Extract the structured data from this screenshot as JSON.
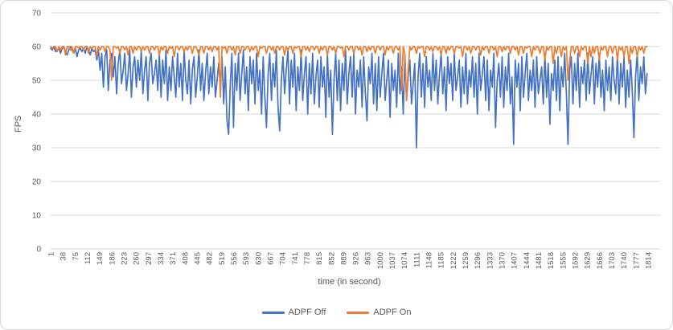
{
  "colors": {
    "series_off": "#4472C4",
    "series_on": "#ED7D31",
    "gridline": "#D9D9D9",
    "axis_line": "#D9D9D9",
    "axis_text": "#595959",
    "frame_border": "#D9D9D9"
  },
  "axes": {
    "y_title": "FPS",
    "x_title": "time (in second)"
  },
  "legend": {
    "items": [
      {
        "label": "ADPF Off",
        "color": "#4472C4"
      },
      {
        "label": "ADPF On",
        "color": "#ED7D31"
      }
    ]
  },
  "chart_data": {
    "type": "line",
    "title": "",
    "xlabel": "time (in second)",
    "ylabel": "FPS",
    "ylim": [
      0,
      70
    ],
    "xlim": [
      1,
      1814
    ],
    "grid": "horizontal",
    "legend_position": "bottom",
    "y_ticks": [
      0,
      10,
      20,
      30,
      40,
      50,
      60,
      70
    ],
    "x_ticks": [
      1,
      38,
      75,
      112,
      149,
      186,
      223,
      260,
      297,
      334,
      371,
      408,
      445,
      482,
      519,
      556,
      593,
      630,
      667,
      704,
      741,
      778,
      815,
      852,
      889,
      926,
      963,
      1000,
      1037,
      1074,
      1111,
      1148,
      1185,
      1222,
      1259,
      1296,
      1333,
      1370,
      1407,
      1444,
      1481,
      1518,
      1555,
      1592,
      1629,
      1666,
      1703,
      1740,
      1777,
      1814
    ],
    "x_start": 1,
    "x_step": 5,
    "series": [
      {
        "name": "ADPF Off",
        "color": "#4472C4",
        "values": [
          59.5,
          59,
          60,
          58.5,
          59,
          59.5,
          58,
          59.5,
          60,
          58.5,
          57.5,
          59,
          60,
          59,
          58,
          59.5,
          57,
          59,
          59.5,
          58.5,
          59.5,
          58,
          60,
          59,
          57.5,
          59.5,
          58.5,
          59,
          56,
          59,
          53,
          58,
          48,
          57,
          59,
          47,
          56,
          58,
          51,
          57,
          46,
          55,
          59,
          49,
          53,
          58,
          47,
          52,
          59,
          45,
          54,
          57,
          48,
          56,
          50,
          59,
          46,
          53,
          57,
          44,
          55,
          58,
          49,
          52,
          56,
          47,
          58,
          45,
          56,
          49,
          59,
          44,
          54,
          47,
          57,
          51,
          45,
          58,
          48,
          55,
          44,
          59,
          50,
          46,
          56,
          43,
          53,
          57,
          45,
          51,
          59,
          47,
          55,
          44,
          52,
          58,
          46,
          54,
          48,
          57,
          45,
          50,
          55,
          48,
          57,
          43,
          54,
          38,
          34,
          49,
          58,
          36,
          55,
          47,
          58,
          44,
          52,
          59,
          46,
          54,
          41,
          57,
          49,
          56,
          43,
          58,
          47,
          53,
          40,
          57,
          45,
          36,
          52,
          58,
          44,
          55,
          48,
          59,
          42,
          35,
          50,
          57,
          46,
          53,
          59,
          43,
          56,
          48,
          58,
          41,
          54,
          47,
          59,
          44,
          52,
          57,
          40,
          55,
          46,
          58,
          43,
          51,
          56,
          42,
          57,
          48,
          54,
          39,
          58,
          45,
          53,
          34,
          50,
          58,
          44,
          56,
          41,
          55,
          47,
          59,
          43,
          52,
          57,
          45,
          58,
          40,
          53,
          48,
          56,
          42,
          57,
          46,
          38,
          54,
          49,
          58,
          43,
          55,
          41,
          57,
          45,
          52,
          58,
          44,
          50,
          56,
          39,
          55,
          47,
          53,
          42,
          58,
          46,
          54,
          40,
          57,
          44,
          51,
          56,
          43,
          49,
          55,
          30,
          51,
          58,
          45,
          55,
          42,
          57,
          48,
          53,
          44,
          58,
          47,
          56,
          43,
          52,
          58,
          46,
          54,
          41,
          57,
          49,
          55,
          44,
          58,
          47,
          51,
          56,
          42,
          54,
          46,
          58,
          43,
          53,
          48,
          57,
          45,
          55,
          40,
          58,
          47,
          52,
          57,
          44,
          56,
          41,
          53,
          48,
          58,
          36,
          50,
          55,
          45,
          57,
          42,
          54,
          47,
          58,
          43,
          51,
          31,
          56,
          48,
          55,
          41,
          57,
          45,
          52,
          58,
          44,
          53,
          47,
          56,
          42,
          57,
          46,
          50,
          54,
          43,
          58,
          45,
          55,
          37,
          52,
          47,
          56,
          44,
          57,
          41,
          54,
          48,
          58,
          46,
          31,
          53,
          57,
          43,
          55,
          47,
          58,
          42,
          54,
          49,
          56,
          44,
          58,
          46,
          52,
          57,
          43,
          55,
          48,
          58,
          45,
          53,
          41,
          56,
          47,
          54,
          44,
          57,
          50,
          46,
          58,
          43,
          55,
          48,
          57,
          42,
          53,
          45,
          56,
          47,
          33,
          51,
          58,
          44,
          54,
          49,
          57,
          46,
          52
        ]
      },
      {
        "name": "ADPF On",
        "color": "#ED7D31",
        "values": [
          60,
          59.5,
          60,
          60,
          58.5,
          60,
          59,
          60,
          60,
          57.5,
          60,
          60,
          59,
          60,
          58,
          60,
          60,
          59.5,
          60,
          60,
          59,
          60,
          60,
          58,
          60,
          59.5,
          60,
          60,
          57,
          60,
          59,
          60,
          60,
          58.5,
          60,
          60,
          59,
          50,
          60,
          60,
          59.5,
          60,
          58,
          60,
          60,
          59,
          60,
          57.5,
          60,
          60,
          58,
          60,
          59,
          60,
          60,
          58.5,
          60,
          59,
          60,
          60,
          58,
          60,
          60,
          59,
          60,
          60,
          57.5,
          60,
          59,
          60,
          60,
          58,
          60,
          59.5,
          60,
          57,
          60,
          60,
          59,
          60,
          60,
          58.5,
          60,
          59,
          60,
          60,
          58,
          60,
          60,
          59,
          57.5,
          60,
          60,
          58,
          60,
          60,
          59,
          60,
          58.5,
          60,
          60,
          59,
          60,
          45,
          60,
          59.5,
          60,
          58,
          60,
          60,
          59,
          60,
          57.5,
          60,
          60,
          58,
          60,
          60,
          59,
          60,
          60,
          58.5,
          60,
          59,
          60,
          60,
          57,
          60,
          59.5,
          60,
          60,
          58,
          60,
          60,
          59,
          60,
          58,
          60,
          60,
          59,
          60,
          60,
          57.5,
          60,
          59,
          60,
          60,
          58,
          60,
          59.5,
          60,
          60,
          57,
          60,
          60,
          59,
          60,
          58.5,
          60,
          60,
          59,
          60,
          60,
          58,
          60,
          59,
          60,
          60,
          57.5,
          60,
          60,
          59,
          60,
          58,
          60,
          60,
          59.5,
          60,
          57,
          60,
          60,
          59,
          60,
          60,
          58,
          60,
          60,
          59,
          60,
          57.5,
          60,
          60,
          58.5,
          60,
          59,
          60,
          60,
          58,
          60,
          60,
          59,
          60,
          60,
          57.5,
          60,
          59,
          60,
          60,
          58,
          60,
          60,
          59,
          60,
          47,
          60,
          58,
          44,
          53,
          60,
          59,
          60,
          60,
          58,
          60,
          59.5,
          60,
          60,
          57,
          60,
          60,
          59,
          60,
          58.5,
          60,
          60,
          59,
          60,
          57.5,
          60,
          60,
          58,
          60,
          59,
          60,
          60,
          58,
          60,
          60,
          59.5,
          60,
          57,
          60,
          60,
          59,
          60,
          58,
          60,
          60,
          59,
          60,
          60,
          57.5,
          60,
          59,
          60,
          60,
          58,
          60,
          60,
          59,
          60,
          57,
          60,
          60,
          58.5,
          60,
          59,
          60,
          60,
          58,
          60,
          60,
          59,
          60,
          57.5,
          60,
          60,
          58,
          60,
          59.5,
          60,
          60,
          57,
          60,
          59,
          60,
          60,
          58,
          60,
          60,
          56,
          60,
          59,
          60,
          60,
          55,
          60,
          58,
          60,
          60,
          57,
          60,
          59,
          60,
          50,
          56,
          60,
          60,
          58,
          60,
          60,
          57,
          60,
          59,
          60,
          60,
          55,
          60,
          57,
          60,
          58,
          60,
          60,
          56,
          60,
          59,
          60,
          60,
          57,
          60,
          60,
          58,
          60,
          60,
          56,
          60,
          59,
          60,
          57,
          60,
          60,
          55,
          60,
          58,
          60,
          60,
          57,
          60,
          59,
          60,
          58,
          60,
          60
        ]
      }
    ]
  }
}
